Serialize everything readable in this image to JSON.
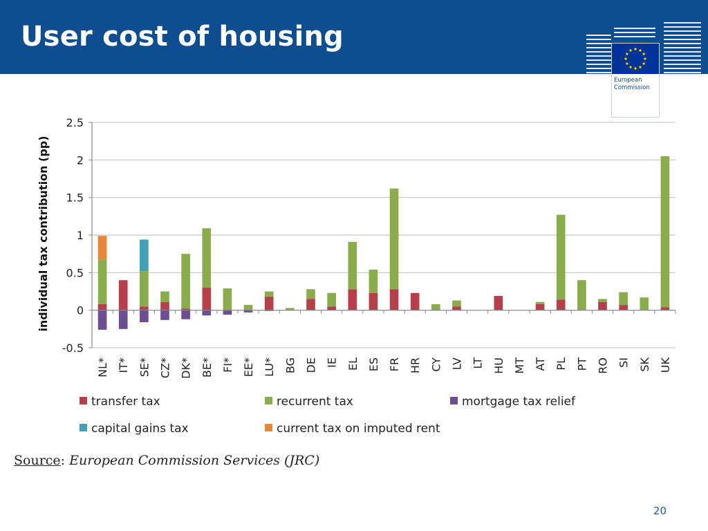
{
  "slide": {
    "title": "User cost of housing",
    "source_label": "Source",
    "source_text": "European Commission Services (JRC)",
    "page_number": "20"
  },
  "logo": {
    "line1": "European",
    "line2": "Commission",
    "flag_color": "#003399",
    "star_color": "#ffdd00"
  },
  "chart_data": {
    "type": "bar",
    "stacked": true,
    "title": "",
    "xlabel": "",
    "ylabel": "individual tax contribution (pp)",
    "ylim": [
      -0.5,
      2.5
    ],
    "yticks": [
      -0.5,
      0,
      0.5,
      1,
      1.5,
      2,
      2.5
    ],
    "ytick_labels": [
      "-0.5",
      "0",
      "0.5",
      "1",
      "1.5",
      "2",
      "2.5"
    ],
    "grid": true,
    "categories": [
      "NL*",
      "IT*",
      "SE*",
      "CZ*",
      "DK*",
      "BE*",
      "FI*",
      "EE*",
      "LU*",
      "BG",
      "DE",
      "IE",
      "EL",
      "ES",
      "FR",
      "HR",
      "CY",
      "LV",
      "LT",
      "HU",
      "MT",
      "AT",
      "PL",
      "PT",
      "RO",
      "SI",
      "SK",
      "UK"
    ],
    "series": [
      {
        "name": "transfer tax",
        "color": "#b5404a",
        "values": [
          0.08,
          0.4,
          0.05,
          0.11,
          0.02,
          0.3,
          0,
          0,
          0.18,
          0,
          0.15,
          0.05,
          0.28,
          0.23,
          0.28,
          0.23,
          0,
          0.05,
          0,
          0.19,
          0,
          0.08,
          0.14,
          0,
          0.11,
          0.07,
          0,
          0.04
        ]
      },
      {
        "name": "recurrent tax",
        "color": "#8aac4d",
        "values": [
          0.59,
          0,
          0.47,
          0.14,
          0.73,
          0.79,
          0.29,
          0.07,
          0.07,
          0.03,
          0.13,
          0.18,
          0.63,
          0.31,
          1.34,
          0,
          0.08,
          0.08,
          0,
          0,
          0,
          0.03,
          1.13,
          0.4,
          0.04,
          0.17,
          0.17,
          2.01
        ]
      },
      {
        "name": "mortgage tax relief",
        "color": "#6c4f91",
        "values": [
          -0.26,
          -0.25,
          -0.16,
          -0.13,
          -0.12,
          -0.07,
          -0.06,
          -0.03,
          -0.01,
          0,
          0,
          0,
          0,
          0,
          0,
          0,
          0,
          0,
          0,
          0,
          0,
          0,
          0,
          0,
          0,
          0,
          0,
          0
        ]
      },
      {
        "name": "capital gains tax",
        "color": "#41a0b6",
        "values": [
          0,
          0,
          0.42,
          0,
          0,
          0,
          0,
          0,
          0,
          0,
          0,
          0,
          0,
          0,
          0,
          0,
          0,
          0,
          0,
          0,
          0,
          0,
          0,
          0,
          0,
          0,
          0,
          0
        ]
      },
      {
        "name": "current tax on imputed rent",
        "color": "#e8863a",
        "values": [
          0.32,
          0,
          0,
          0,
          0,
          0,
          0,
          0,
          0,
          0,
          0,
          0,
          0,
          0,
          0,
          0,
          0,
          0,
          0,
          0,
          0,
          0,
          0,
          0,
          0,
          0,
          0,
          0
        ]
      }
    ],
    "legend": [
      "transfer tax",
      "recurrent tax",
      "mortgage tax relief",
      "capital gains tax",
      "current tax on imputed rent"
    ],
    "legend_position": "bottom"
  }
}
